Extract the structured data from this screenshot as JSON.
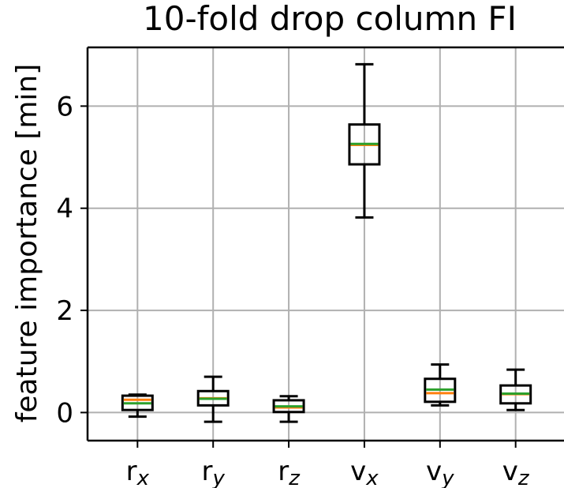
{
  "chart_data": {
    "type": "box",
    "title": "10-fold drop column FI",
    "xlabel": "",
    "ylabel": "feature importance [min]",
    "ylim": [
      -0.55,
      7.15
    ],
    "yticks": [
      0,
      2,
      4,
      6
    ],
    "grid": true,
    "categories": [
      {
        "base": "r",
        "sub": "x"
      },
      {
        "base": "r",
        "sub": "y"
      },
      {
        "base": "r",
        "sub": "z"
      },
      {
        "base": "v",
        "sub": "x"
      },
      {
        "base": "v",
        "sub": "y"
      },
      {
        "base": "v",
        "sub": "z"
      }
    ],
    "boxes": [
      {
        "whislo": -0.08,
        "q1": 0.05,
        "median": 0.25,
        "mean": 0.18,
        "q3": 0.33,
        "whishi": 0.35
      },
      {
        "whislo": -0.18,
        "q1": 0.14,
        "median": 0.28,
        "mean": 0.27,
        "q3": 0.42,
        "whishi": 0.7
      },
      {
        "whislo": -0.18,
        "q1": 0.01,
        "median": 0.1,
        "mean": 0.12,
        "q3": 0.24,
        "whishi": 0.32
      },
      {
        "whislo": 3.82,
        "q1": 4.86,
        "median": 5.24,
        "mean": 5.26,
        "q3": 5.64,
        "whishi": 6.82
      },
      {
        "whislo": 0.14,
        "q1": 0.21,
        "median": 0.38,
        "mean": 0.45,
        "q3": 0.66,
        "whishi": 0.94
      },
      {
        "whislo": 0.05,
        "q1": 0.18,
        "median": 0.36,
        "mean": 0.37,
        "q3": 0.53,
        "whishi": 0.84
      }
    ],
    "colors": {
      "box": "#000000",
      "median": "#ff7f0e",
      "mean": "#2ca02c",
      "grid": "#b0b0b0"
    }
  }
}
